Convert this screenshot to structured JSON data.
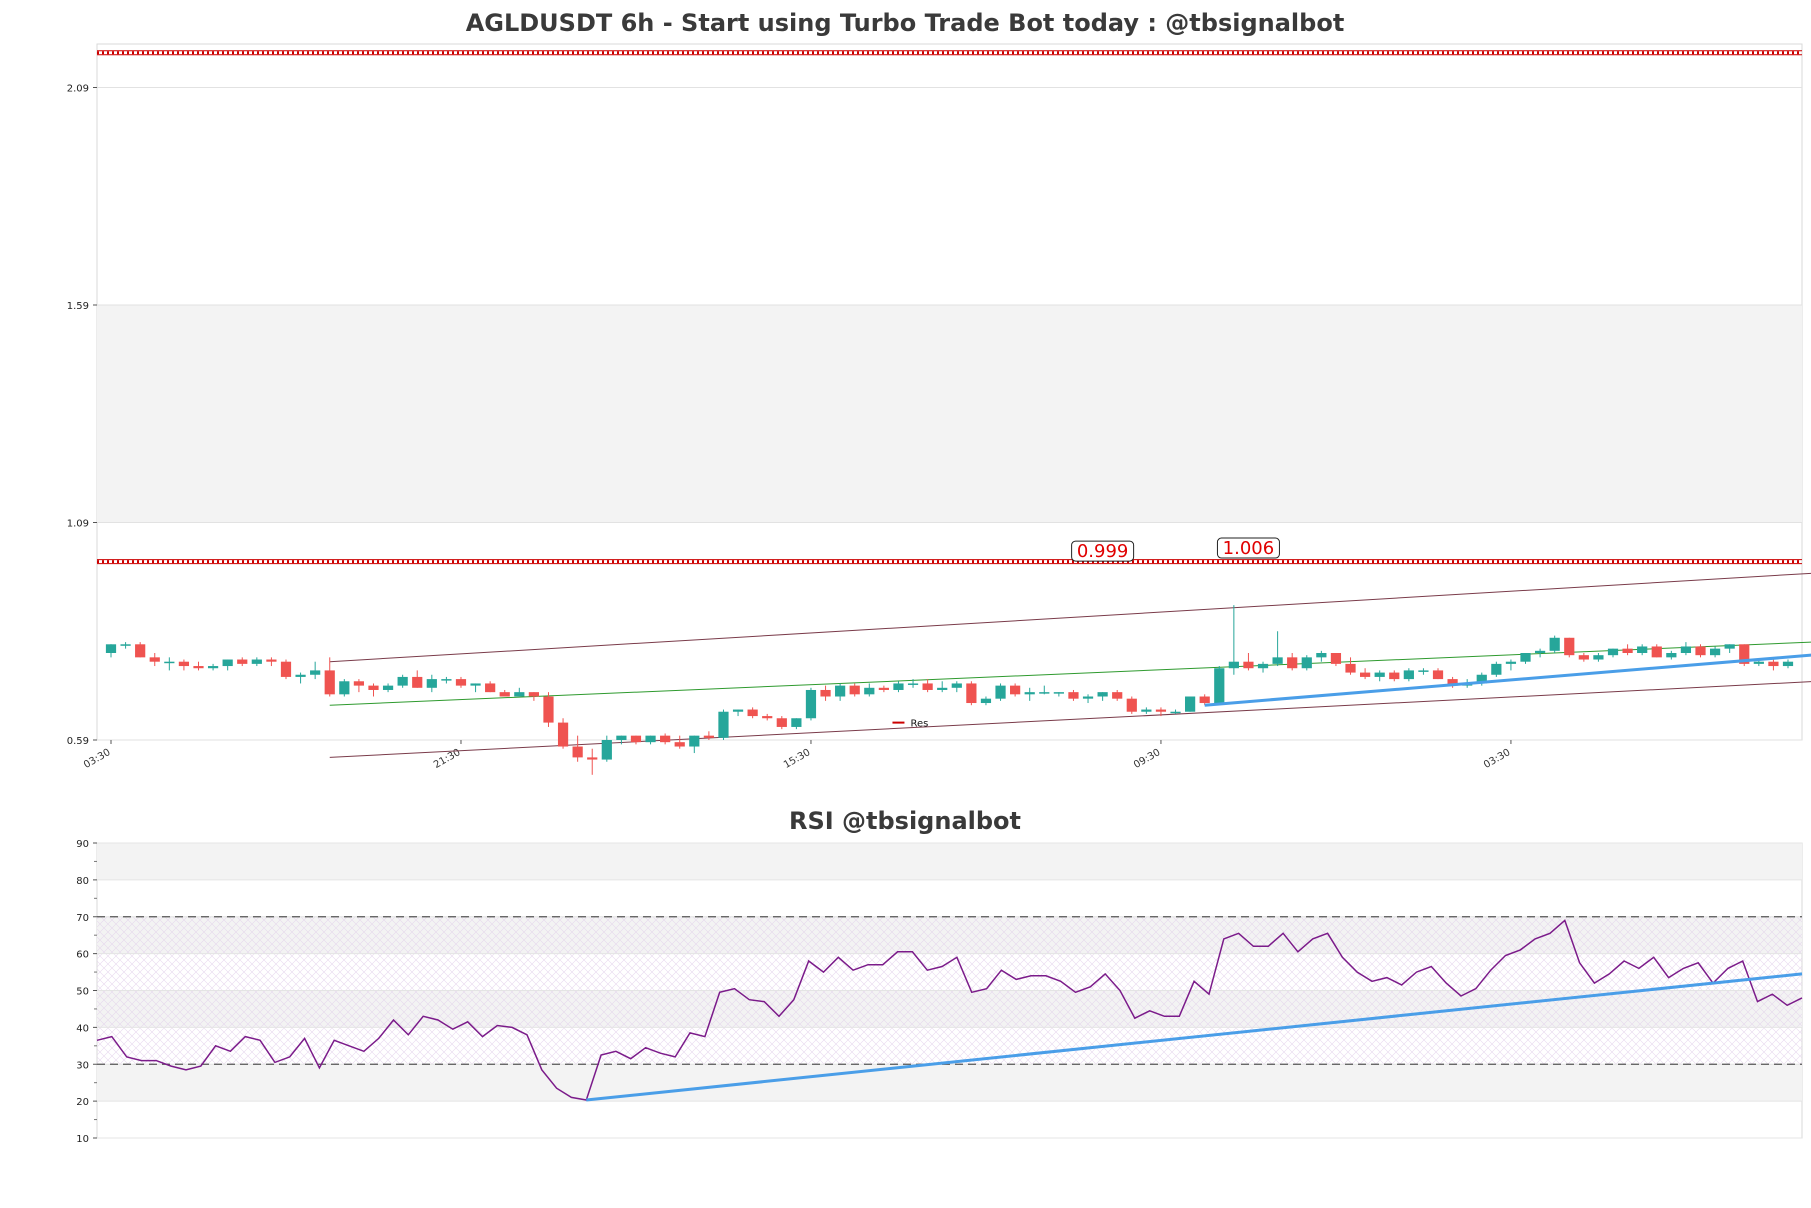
{
  "chart_data": [
    {
      "type": "candlestick",
      "title": "AGLDUSDT 6h - Start using Turbo Trade Bot today : @tbsignalbot",
      "y_ticks": [
        "0.59",
        "1.09",
        "1.59",
        "2.09"
      ],
      "ylim": [
        0.59,
        2.19
      ],
      "x_tick_labels": [
        "03:30",
        "21:30",
        "15:30",
        "09:30",
        "03:30",
        "21:30"
      ],
      "x_tick_positions": [
        0,
        24,
        48,
        72,
        96,
        120
      ],
      "candles": [
        [
          0.79,
          0.81,
          0.78,
          0.81
        ],
        [
          0.81,
          0.815,
          0.8,
          0.81
        ],
        [
          0.81,
          0.815,
          0.78,
          0.78
        ],
        [
          0.78,
          0.79,
          0.76,
          0.77
        ],
        [
          0.77,
          0.78,
          0.75,
          0.77
        ],
        [
          0.77,
          0.775,
          0.75,
          0.76
        ],
        [
          0.76,
          0.77,
          0.75,
          0.755
        ],
        [
          0.755,
          0.765,
          0.75,
          0.76
        ],
        [
          0.76,
          0.775,
          0.75,
          0.775
        ],
        [
          0.775,
          0.78,
          0.76,
          0.765
        ],
        [
          0.765,
          0.78,
          0.76,
          0.775
        ],
        [
          0.775,
          0.78,
          0.76,
          0.77
        ],
        [
          0.77,
          0.775,
          0.73,
          0.735
        ],
        [
          0.735,
          0.745,
          0.72,
          0.74
        ],
        [
          0.74,
          0.77,
          0.73,
          0.75
        ],
        [
          0.75,
          0.78,
          0.69,
          0.695
        ],
        [
          0.695,
          0.73,
          0.69,
          0.725
        ],
        [
          0.725,
          0.73,
          0.7,
          0.715
        ],
        [
          0.715,
          0.72,
          0.69,
          0.705
        ],
        [
          0.705,
          0.72,
          0.7,
          0.715
        ],
        [
          0.715,
          0.74,
          0.71,
          0.735
        ],
        [
          0.735,
          0.75,
          0.71,
          0.71
        ],
        [
          0.71,
          0.74,
          0.7,
          0.73
        ],
        [
          0.73,
          0.735,
          0.72,
          0.73
        ],
        [
          0.73,
          0.735,
          0.71,
          0.715
        ],
        [
          0.715,
          0.72,
          0.7,
          0.72
        ],
        [
          0.72,
          0.725,
          0.7,
          0.7
        ],
        [
          0.7,
          0.705,
          0.69,
          0.69
        ],
        [
          0.69,
          0.71,
          0.69,
          0.7
        ],
        [
          0.7,
          0.7,
          0.68,
          0.69
        ],
        [
          0.69,
          0.7,
          0.62,
          0.63
        ],
        [
          0.63,
          0.64,
          0.57,
          0.575
        ],
        [
          0.575,
          0.6,
          0.54,
          0.55
        ],
        [
          0.55,
          0.57,
          0.51,
          0.545
        ],
        [
          0.545,
          0.6,
          0.54,
          0.59
        ],
        [
          0.59,
          0.6,
          0.58,
          0.6
        ],
        [
          0.6,
          0.6,
          0.58,
          0.585
        ],
        [
          0.585,
          0.6,
          0.58,
          0.6
        ],
        [
          0.6,
          0.605,
          0.58,
          0.585
        ],
        [
          0.585,
          0.6,
          0.57,
          0.575
        ],
        [
          0.575,
          0.6,
          0.56,
          0.6
        ],
        [
          0.6,
          0.61,
          0.59,
          0.595
        ],
        [
          0.595,
          0.66,
          0.59,
          0.655
        ],
        [
          0.655,
          0.66,
          0.645,
          0.66
        ],
        [
          0.66,
          0.665,
          0.64,
          0.645
        ],
        [
          0.645,
          0.65,
          0.635,
          0.64
        ],
        [
          0.64,
          0.645,
          0.615,
          0.62
        ],
        [
          0.62,
          0.64,
          0.615,
          0.64
        ],
        [
          0.64,
          0.71,
          0.635,
          0.705
        ],
        [
          0.705,
          0.715,
          0.68,
          0.69
        ],
        [
          0.69,
          0.72,
          0.68,
          0.715
        ],
        [
          0.715,
          0.72,
          0.69,
          0.695
        ],
        [
          0.695,
          0.72,
          0.69,
          0.71
        ],
        [
          0.71,
          0.715,
          0.7,
          0.705
        ],
        [
          0.705,
          0.725,
          0.7,
          0.72
        ],
        [
          0.72,
          0.73,
          0.71,
          0.72
        ],
        [
          0.72,
          0.73,
          0.7,
          0.705
        ],
        [
          0.705,
          0.725,
          0.7,
          0.71
        ],
        [
          0.71,
          0.725,
          0.7,
          0.72
        ],
        [
          0.72,
          0.725,
          0.67,
          0.675
        ],
        [
          0.675,
          0.69,
          0.67,
          0.685
        ],
        [
          0.685,
          0.72,
          0.68,
          0.715
        ],
        [
          0.715,
          0.72,
          0.69,
          0.695
        ],
        [
          0.695,
          0.71,
          0.68,
          0.7
        ],
        [
          0.7,
          0.715,
          0.695,
          0.7
        ],
        [
          0.7,
          0.7,
          0.69,
          0.7
        ],
        [
          0.7,
          0.705,
          0.68,
          0.685
        ],
        [
          0.685,
          0.695,
          0.675,
          0.69
        ],
        [
          0.69,
          0.7,
          0.68,
          0.7
        ],
        [
          0.7,
          0.705,
          0.68,
          0.685
        ],
        [
          0.685,
          0.69,
          0.65,
          0.655
        ],
        [
          0.655,
          0.665,
          0.65,
          0.66
        ],
        [
          0.66,
          0.665,
          0.645,
          0.655
        ],
        [
          0.655,
          0.66,
          0.65,
          0.655
        ],
        [
          0.655,
          0.69,
          0.655,
          0.69
        ],
        [
          0.69,
          0.695,
          0.67,
          0.675
        ],
        [
          0.675,
          0.76,
          0.67,
          0.755
        ],
        [
          0.755,
          0.9,
          0.74,
          0.77
        ],
        [
          0.77,
          0.79,
          0.75,
          0.755
        ],
        [
          0.755,
          0.77,
          0.745,
          0.765
        ],
        [
          0.765,
          0.84,
          0.76,
          0.78
        ],
        [
          0.78,
          0.79,
          0.75,
          0.755
        ],
        [
          0.755,
          0.785,
          0.75,
          0.78
        ],
        [
          0.78,
          0.795,
          0.77,
          0.79
        ],
        [
          0.79,
          0.79,
          0.76,
          0.765
        ],
        [
          0.765,
          0.78,
          0.74,
          0.745
        ],
        [
          0.745,
          0.755,
          0.73,
          0.735
        ],
        [
          0.735,
          0.75,
          0.725,
          0.745
        ],
        [
          0.745,
          0.75,
          0.725,
          0.73
        ],
        [
          0.73,
          0.755,
          0.725,
          0.75
        ],
        [
          0.75,
          0.755,
          0.74,
          0.75
        ],
        [
          0.75,
          0.755,
          0.73,
          0.73
        ],
        [
          0.73,
          0.735,
          0.71,
          0.715
        ],
        [
          0.715,
          0.73,
          0.71,
          0.72
        ],
        [
          0.72,
          0.745,
          0.715,
          0.74
        ],
        [
          0.74,
          0.77,
          0.735,
          0.765
        ],
        [
          0.765,
          0.775,
          0.75,
          0.77
        ],
        [
          0.77,
          0.79,
          0.765,
          0.79
        ],
        [
          0.79,
          0.8,
          0.78,
          0.795
        ],
        [
          0.795,
          0.83,
          0.79,
          0.825
        ],
        [
          0.825,
          0.825,
          0.78,
          0.785
        ],
        [
          0.785,
          0.79,
          0.77,
          0.775
        ],
        [
          0.775,
          0.79,
          0.77,
          0.785
        ],
        [
          0.785,
          0.8,
          0.78,
          0.8
        ],
        [
          0.8,
          0.81,
          0.785,
          0.79
        ],
        [
          0.79,
          0.81,
          0.785,
          0.805
        ],
        [
          0.805,
          0.81,
          0.78,
          0.78
        ],
        [
          0.78,
          0.795,
          0.775,
          0.79
        ],
        [
          0.79,
          0.815,
          0.785,
          0.805
        ],
        [
          0.805,
          0.81,
          0.78,
          0.785
        ],
        [
          0.785,
          0.805,
          0.78,
          0.8
        ],
        [
          0.8,
          0.81,
          0.79,
          0.81
        ],
        [
          0.81,
          0.81,
          0.76,
          0.765
        ],
        [
          0.765,
          0.775,
          0.76,
          0.77
        ],
        [
          0.77,
          0.775,
          0.75,
          0.76
        ],
        [
          0.76,
          0.775,
          0.755,
          0.77
        ]
      ],
      "resistance_level": 1.0,
      "top_level": 2.17,
      "annotations": [
        {
          "label": "0.999",
          "index": 68,
          "value": 0.999
        },
        {
          "label": "1.006",
          "index": 78,
          "value": 1.006
        }
      ],
      "channel_upper": {
        "x": [
          15,
          120
        ],
        "y": [
          0.77,
          0.98
        ]
      },
      "channel_lower": {
        "x": [
          15,
          120
        ],
        "y": [
          0.55,
          0.73
        ]
      },
      "channel_mid": {
        "x": [
          15,
          120
        ],
        "y": [
          0.67,
          0.82
        ]
      },
      "support_trend": {
        "x": [
          75,
          122
        ],
        "y": [
          0.67,
          0.8
        ]
      },
      "legend": [
        {
          "label": "Res",
          "color": "#cc0000"
        }
      ]
    },
    {
      "type": "line",
      "title": "RSI @tbsignalbot",
      "y_ticks": [
        "10",
        "20",
        "30",
        "40",
        "50",
        "60",
        "70",
        "80",
        "90"
      ],
      "ylim": [
        10,
        90
      ],
      "overbought": 70,
      "oversold": 30,
      "values": [
        36.5,
        37.5,
        32,
        31,
        31,
        29.5,
        28.5,
        29.5,
        35,
        33.5,
        37.5,
        36.5,
        30.5,
        32,
        37,
        29,
        36.5,
        35,
        33.5,
        37,
        42,
        38,
        43,
        42,
        39.5,
        41.5,
        37.5,
        40.5,
        40,
        38,
        28.5,
        23.5,
        21,
        20.3,
        32.5,
        33.5,
        31.5,
        34.5,
        33,
        32,
        38.5,
        37.5,
        49.5,
        50.5,
        47.5,
        47,
        43,
        47.5,
        58,
        55,
        59,
        55.5,
        57,
        57,
        60.5,
        60.5,
        55.5,
        56.5,
        59,
        49.5,
        50.5,
        55.5,
        53,
        54,
        54,
        52.5,
        49.5,
        51,
        54.5,
        50,
        42.5,
        44.5,
        43,
        43,
        52.5,
        49,
        64,
        65.5,
        62,
        62,
        65.5,
        60.5,
        64,
        65.5,
        59,
        55,
        52.5,
        53.5,
        51.5,
        55,
        56.5,
        52,
        48.5,
        50.5,
        55.5,
        59.5,
        61,
        64,
        65.5,
        69,
        57.5,
        52,
        54.5,
        58,
        56,
        59,
        53.5,
        56,
        57.5,
        52,
        56,
        58,
        47,
        49,
        46,
        48
      ],
      "trend": {
        "x": [
          33,
          122
        ],
        "y": [
          20.3,
          54.5
        ]
      }
    }
  ],
  "colors": {
    "up": "#26a69a",
    "down": "#ef5350",
    "resistance": "#cc0000",
    "channel": "#7a3b4a",
    "channel_mid": "#2e9a2e",
    "trend": "#4a9ee8",
    "rsi": "#7b1b8a"
  }
}
